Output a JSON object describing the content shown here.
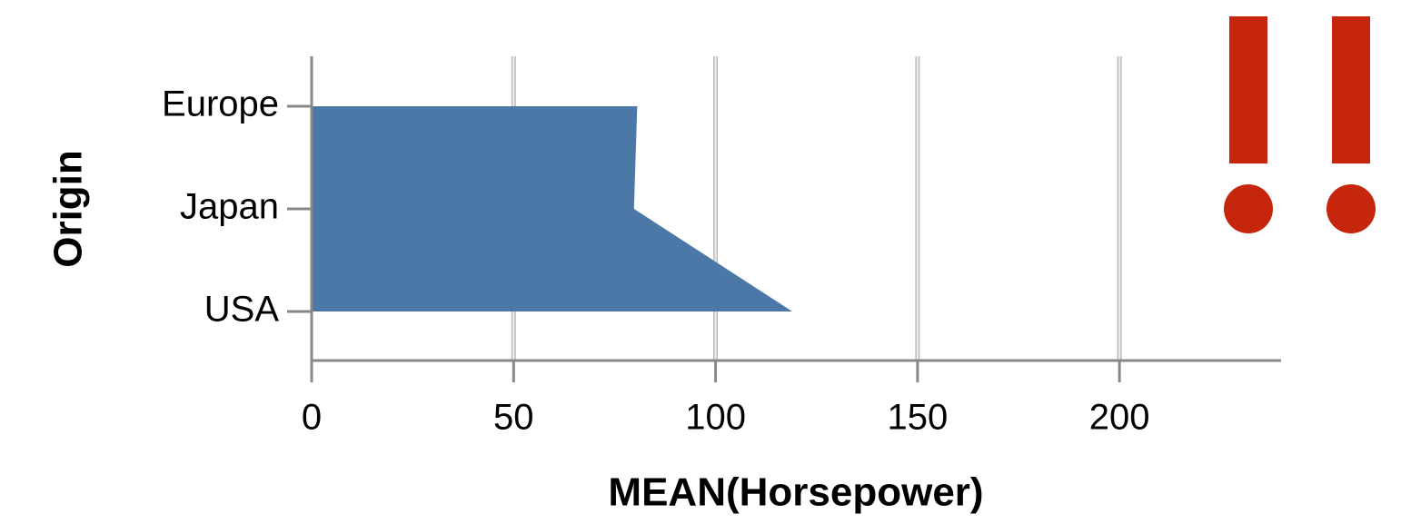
{
  "chart_data": {
    "type": "area",
    "orientation": "horizontal",
    "x_label": "MEAN(Horsepower)",
    "y_label": "Origin",
    "categories": [
      "Europe",
      "Japan",
      "USA"
    ],
    "values": [
      80.6,
      79.8,
      119.0
    ],
    "color": "#4c78a8",
    "xlim": [
      0,
      240
    ],
    "xticks": [
      0,
      50,
      100,
      150,
      200
    ],
    "grid": true
  }
}
